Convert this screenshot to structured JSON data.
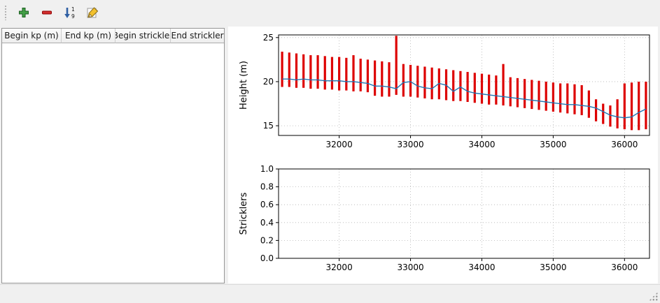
{
  "window": {
    "bg": "#f0f0f0"
  },
  "toolbar": {
    "buttons": [
      {
        "icon": "add-plus-icon"
      },
      {
        "icon": "remove-minus-icon"
      },
      {
        "icon": "sort-numeric-icon"
      },
      {
        "icon": "edit-pencil-icon"
      }
    ]
  },
  "table": {
    "columns": [
      "Begin kp (m)",
      "End kp (m)",
      "Begin strickler",
      "End strickler"
    ],
    "rows": []
  },
  "chart_data": [
    {
      "type": "bar",
      "title": "",
      "xlabel": "",
      "ylabel": "Height (m)",
      "xlim": [
        31150,
        36350
      ],
      "ylim": [
        13.9,
        25.3
      ],
      "xticks": [
        32000,
        33000,
        34000,
        35000,
        36000
      ],
      "xticklabels": [
        "32000",
        "33000",
        "34000",
        "35000",
        "36000"
      ],
      "yticks": [
        15,
        20,
        25
      ],
      "yticklabels": [
        "15",
        "20",
        "25"
      ],
      "grid": true,
      "legend": false,
      "bar_color": "#dd0000",
      "line_color": "#1f77b4",
      "x": [
        31200,
        31300,
        31400,
        31500,
        31600,
        31700,
        31800,
        31900,
        32000,
        32100,
        32200,
        32300,
        32400,
        32500,
        32600,
        32700,
        32800,
        32900,
        33000,
        33100,
        33200,
        33300,
        33400,
        33500,
        33600,
        33700,
        33800,
        33900,
        34000,
        34100,
        34200,
        34300,
        34400,
        34500,
        34600,
        34700,
        34800,
        34900,
        35000,
        35100,
        35200,
        35300,
        35400,
        35500,
        35600,
        35700,
        35800,
        35900,
        36000,
        36100,
        36200,
        36300
      ],
      "bar_top": [
        23.4,
        23.3,
        23.2,
        23.1,
        23.0,
        23.0,
        22.9,
        22.8,
        22.8,
        22.7,
        23.0,
        22.6,
        22.5,
        22.4,
        22.3,
        22.2,
        25.2,
        22.0,
        21.9,
        21.8,
        21.7,
        21.6,
        21.5,
        21.4,
        21.3,
        21.2,
        21.1,
        21.0,
        20.9,
        20.8,
        20.7,
        22.0,
        20.5,
        20.4,
        20.3,
        20.2,
        20.1,
        20.0,
        19.9,
        19.8,
        19.8,
        19.7,
        19.6,
        19.0,
        18.0,
        17.5,
        17.3,
        18.0,
        19.8,
        19.9,
        20.0,
        20.0
      ],
      "bar_bottom": [
        19.4,
        19.4,
        19.3,
        19.3,
        19.2,
        19.2,
        19.1,
        19.1,
        19.0,
        19.0,
        18.9,
        18.9,
        18.8,
        18.4,
        18.3,
        18.3,
        18.5,
        18.3,
        18.3,
        18.2,
        18.1,
        18.0,
        18.0,
        17.9,
        17.8,
        17.8,
        17.7,
        17.6,
        17.5,
        17.4,
        17.4,
        17.3,
        17.2,
        17.1,
        17.0,
        16.9,
        16.8,
        16.7,
        16.6,
        16.5,
        16.4,
        16.3,
        16.2,
        15.9,
        15.5,
        15.2,
        14.9,
        14.7,
        14.6,
        14.5,
        14.5,
        14.6
      ],
      "line": [
        20.3,
        20.3,
        20.2,
        20.3,
        20.2,
        20.2,
        20.1,
        20.1,
        20.1,
        20.0,
        20.0,
        19.9,
        19.8,
        19.5,
        19.5,
        19.4,
        19.2,
        19.9,
        20.0,
        19.5,
        19.3,
        19.2,
        19.8,
        19.6,
        18.9,
        19.4,
        18.9,
        18.7,
        18.6,
        18.5,
        18.4,
        18.3,
        18.2,
        18.1,
        18.0,
        17.9,
        17.8,
        17.7,
        17.6,
        17.5,
        17.4,
        17.4,
        17.3,
        17.2,
        17.0,
        16.6,
        16.2,
        16.0,
        15.9,
        16.0,
        16.5,
        16.9
      ]
    },
    {
      "type": "line",
      "title": "",
      "xlabel": "",
      "ylabel": "Stricklers",
      "xlim": [
        31150,
        36350
      ],
      "ylim": [
        0,
        1
      ],
      "xticks": [
        32000,
        33000,
        34000,
        35000,
        36000
      ],
      "xticklabels": [
        "32000",
        "33000",
        "34000",
        "35000",
        "36000"
      ],
      "yticks": [
        0,
        0.2,
        0.4,
        0.6,
        0.8,
        1.0
      ],
      "yticklabels": [
        "0.0",
        "0.2",
        "0.4",
        "0.6",
        "0.8",
        "1.0"
      ],
      "grid": true,
      "legend": false,
      "x": [],
      "series": []
    }
  ]
}
